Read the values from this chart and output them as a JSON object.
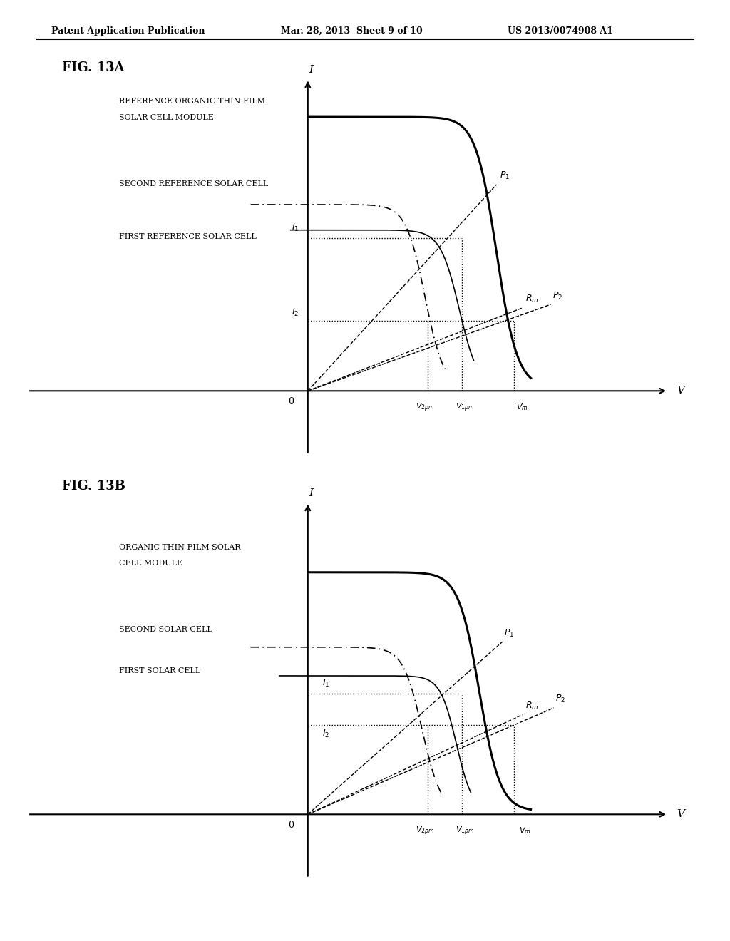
{
  "header_left": "Patent Application Publication",
  "header_mid": "Mar. 28, 2013  Sheet 9 of 10",
  "header_right": "US 2013/0074908 A1",
  "fig_a_label": "FIG. 13A",
  "fig_b_label": "FIG. 13B",
  "fig_a_title1": "REFERENCE ORGANIC THIN-FILM",
  "fig_a_title2": "SOLAR CELL MODULE",
  "fig_b_title1": "ORGANIC THIN-FILM SOLAR",
  "fig_b_title2": "CELL MODULE",
  "label_second_ref": "SECOND REFERENCE SOLAR CELL",
  "label_first_ref": "FIRST REFERENCE SOLAR CELL",
  "label_second": "SECOND SOLAR CELL",
  "label_first": "FIRST SOLAR CELL",
  "bg_color": "#ffffff"
}
